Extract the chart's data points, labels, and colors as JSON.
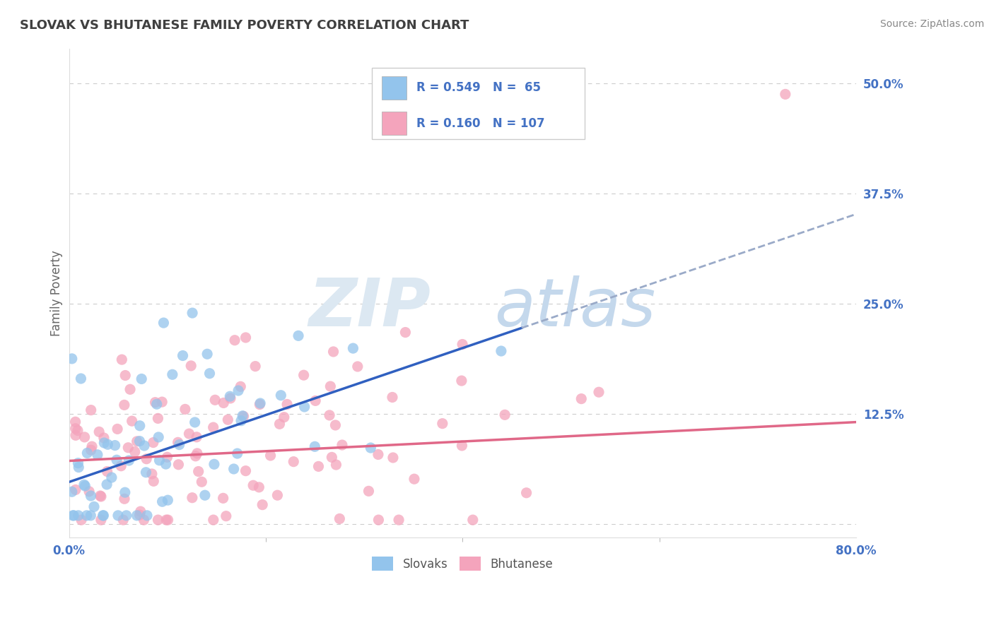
{
  "title": "SLOVAK VS BHUTANESE FAMILY POVERTY CORRELATION CHART",
  "source": "Source: ZipAtlas.com",
  "ylabel": "Family Poverty",
  "xlim": [
    0.0,
    0.8
  ],
  "ylim": [
    -0.015,
    0.54
  ],
  "slovak_color": "#93C4EC",
  "bhutanese_color": "#F4A4BC",
  "slovak_line_color": "#3060C0",
  "bhutanese_line_color": "#E06888",
  "dashed_color": "#9AAAC8",
  "Slovak_R": 0.549,
  "Slovak_N": 65,
  "Bhutanese_R": 0.16,
  "Bhutanese_N": 107,
  "background_color": "#FFFFFF",
  "grid_color": "#CCCCCC",
  "tick_color": "#4472C4",
  "title_color": "#404040",
  "source_color": "#888888",
  "legend_label_1": "Slovaks",
  "legend_label_2": "Bhutanese",
  "sk_intercept": 0.048,
  "sk_slope": 0.38,
  "sk_line_end": 0.46,
  "bh_intercept": 0.072,
  "bh_slope": 0.055,
  "bh_line_end": 0.8,
  "watermark_zip_color": "#D8E4F0",
  "watermark_atlas_color": "#C0D4E8"
}
